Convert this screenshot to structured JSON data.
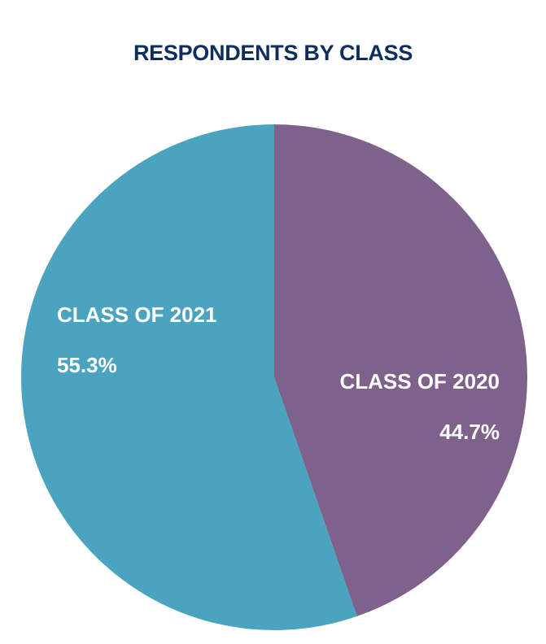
{
  "chart_data": {
    "type": "pie",
    "title": "RESPONDENTS BY CLASS",
    "slices": [
      {
        "label": "CLASS OF 2020",
        "value": 44.7,
        "value_label": "44.7%",
        "color": "#7e628c"
      },
      {
        "label": "CLASS OF 2021",
        "value": 55.3,
        "value_label": "55.3%",
        "color": "#4aa3bf"
      }
    ],
    "start_angle": "top, clockwise"
  }
}
